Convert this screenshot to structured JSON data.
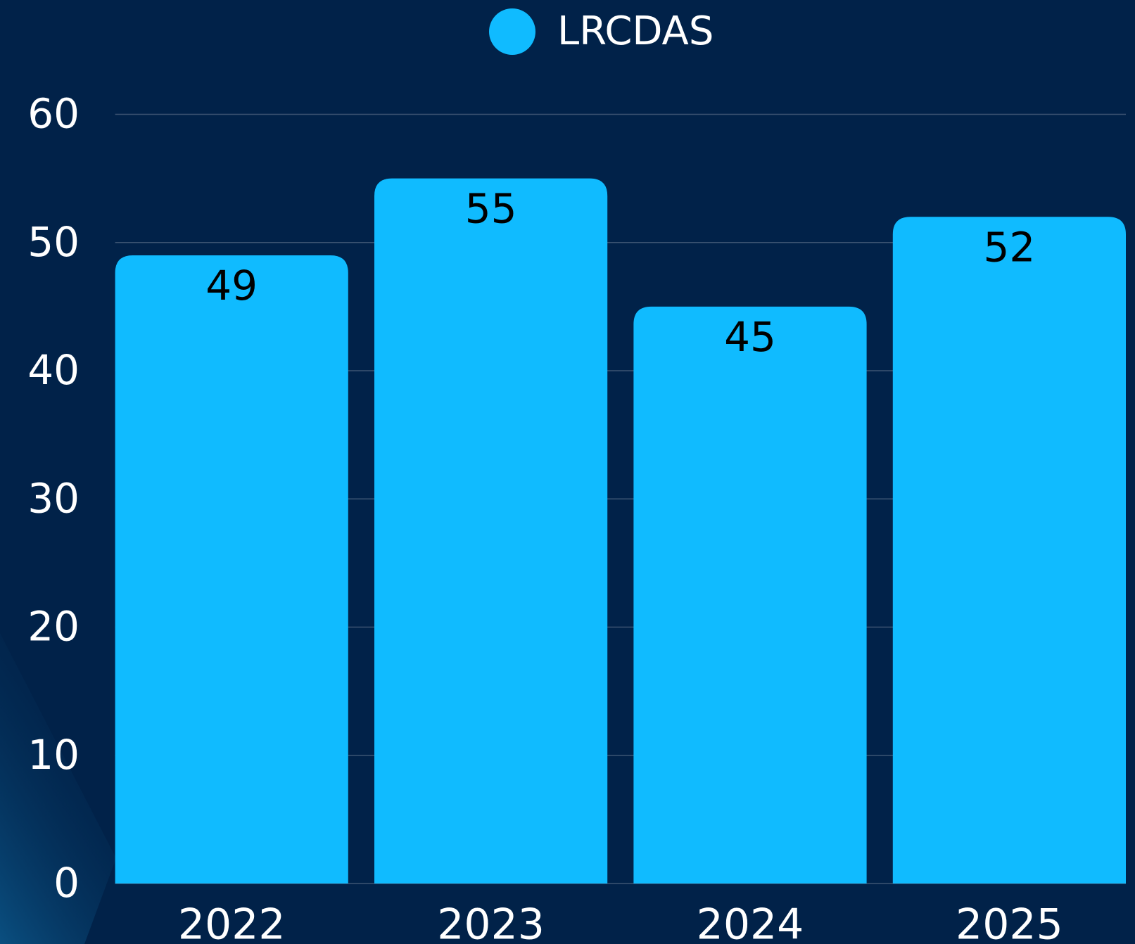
{
  "chart_data": {
    "type": "bar",
    "categories": [
      "2022",
      "2023",
      "2024",
      "2025"
    ],
    "series": [
      {
        "name": "LRCDAS",
        "color": "#10bbff",
        "values": [
          49,
          55,
          45,
          52
        ]
      }
    ],
    "ylim": [
      0,
      60
    ],
    "yticks": [
      0,
      10,
      20,
      30,
      40,
      50,
      60
    ],
    "grid": true,
    "legend": "top"
  }
}
